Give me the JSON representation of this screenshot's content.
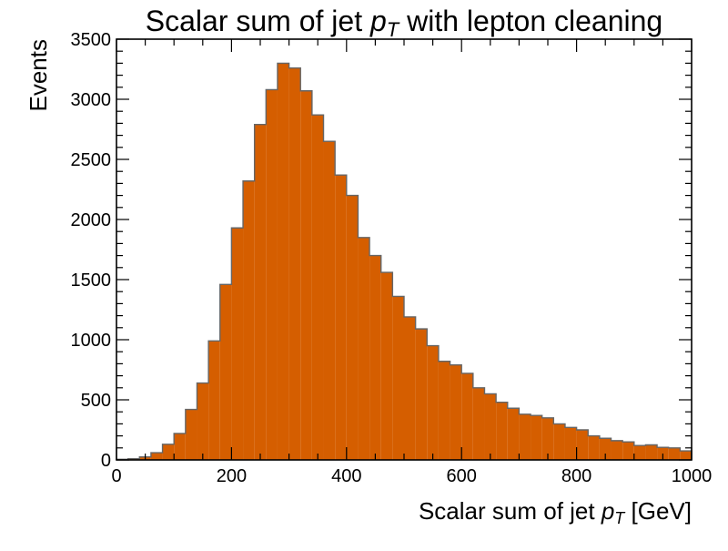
{
  "chart_data": {
    "type": "bar",
    "title": "Scalar sum of jet p_T with lepton cleaning",
    "title_parts": {
      "before": "Scalar sum of jet ",
      "symbol": "p",
      "subscript": "T",
      "after": " with lepton cleaning"
    },
    "xlabel": "Scalar sum of jet p_T [GeV]",
    "xlabel_parts": {
      "before": "Scalar sum of jet ",
      "symbol": "p",
      "subscript": "T",
      "after": " [GeV]"
    },
    "ylabel": "Events",
    "xlim": [
      0,
      1000
    ],
    "ylim": [
      0,
      3500
    ],
    "grid": false,
    "legend": "none",
    "bin_edges_start": 0,
    "bin_width": 20,
    "values": [
      5,
      10,
      25,
      60,
      130,
      220,
      420,
      640,
      990,
      1460,
      1930,
      2320,
      2790,
      3080,
      3300,
      3260,
      3070,
      2870,
      2650,
      2370,
      2200,
      1850,
      1700,
      1560,
      1360,
      1190,
      1090,
      950,
      820,
      790,
      720,
      600,
      550,
      480,
      430,
      380,
      370,
      350,
      300,
      270,
      250,
      200,
      180,
      160,
      150,
      120,
      125,
      105,
      100,
      75,
      70
    ],
    "x_ticks": [
      0,
      200,
      400,
      600,
      800,
      1000
    ],
    "y_ticks": [
      0,
      500,
      1000,
      1500,
      2000,
      2500,
      3000,
      3500
    ],
    "colors": {
      "fill": "#d55e00",
      "edge": "#666666",
      "axis": "#000000"
    }
  }
}
